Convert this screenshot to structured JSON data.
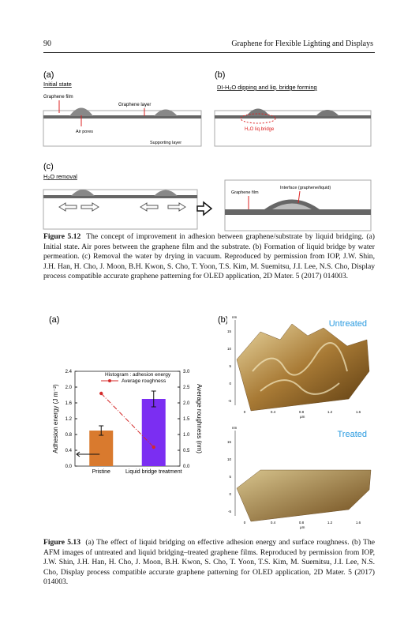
{
  "header": {
    "page_number": "90",
    "running_title": "Graphene for Flexible Lighting and Displays"
  },
  "figure_5_12": {
    "panel_a": {
      "label": "(a)",
      "title": "Initial state",
      "graphene_film": "Graphene film",
      "graphene_layer": "Graphene layer",
      "air_pores": "Air pores",
      "supporting_layer": "Supporting layer"
    },
    "panel_b": {
      "label": "(b)",
      "title": "DI-H₂O dipping and liq. bridge forming",
      "liquid_bridge": "H₂O liq.bridge"
    },
    "panel_c": {
      "label": "(c)",
      "title": "H₂O removal",
      "graphene_film": "Graphene film",
      "interface": "Interface (graphene/liquid)"
    },
    "caption": {
      "label": "Figure 5.12",
      "text": "The concept of improvement in adhesion between graphene/substrate by liquid bridging. (a) Initial state. Air pores between the graphene film and the substrate. (b) Formation of liquid bridge by water permeation. (c) Removal the water by drying in vacuum. Reproduced by permission from IOP, J.W. Shin, J.H. Han, H. Cho, J. Moon, B.H. Kwon, S. Cho, T. Yoon, T.S. Kim, M. Suemitsu, J.I. Lee, N.S. Cho, Display process compatible accurate graphene patterning for OLED application, 2D Mater. 5 (2017) 014003."
    }
  },
  "figure_5_13": {
    "panel_a_label": "(a)",
    "panel_b_label": "(b)",
    "chart": {
      "type": "bar",
      "categories": [
        "Pristine",
        "Liquid bridge treatment"
      ],
      "ylabel": "Adhesion energy (J m⁻²)",
      "y2label": "Average roughness (nm)",
      "ylim": [
        0,
        2.4
      ],
      "yticks": [
        {
          "value": 0,
          "label": "0.0"
        },
        {
          "value": 0.4,
          "label": "0.4"
        },
        {
          "value": 0.8,
          "label": "0.8"
        },
        {
          "value": 1.2,
          "label": "1.2"
        },
        {
          "value": 1.6,
          "label": "1.6"
        },
        {
          "value": 2,
          "label": "2.0"
        },
        {
          "value": 2.4,
          "label": "2.4"
        }
      ],
      "y2lim": [
        0,
        3
      ],
      "y2ticks": [
        {
          "value": 0,
          "label": "0.0"
        },
        {
          "value": 0.5,
          "label": "0.5"
        },
        {
          "value": 1,
          "label": "1.0"
        },
        {
          "value": 1.5,
          "label": "1.5"
        },
        {
          "value": 2,
          "label": "2.0"
        },
        {
          "value": 2.5,
          "label": "2.5"
        },
        {
          "value": 3,
          "label": "3.0"
        }
      ],
      "series": [
        {
          "name": "Histogram : adhesion energy",
          "colors": [
            "#d97a2e",
            "#7b2ef2"
          ],
          "values": [
            0.9,
            1.7
          ],
          "errors": [
            0.12,
            0.2
          ]
        },
        {
          "name": "Average roughness",
          "color": "#d42a2a",
          "axis": "y2",
          "values": [
            2.3,
            0.6
          ]
        }
      ]
    },
    "afm": {
      "z_unit": "nm",
      "z_ticks": [
        "15",
        "10",
        "5",
        "0",
        "-5"
      ],
      "x_ticks": [
        "0",
        "0.4",
        "0.8",
        "1.2",
        "1.6"
      ],
      "x_unit": "μm",
      "panels": [
        {
          "label": "Untreated"
        },
        {
          "label": "Treated"
        }
      ]
    },
    "caption": {
      "label": "Figure 5.13",
      "text": "(a) The effect of liquid bridging on effective adhesion energy and surface roughness. (b) The AFM images of untreated and liquid bridging–treated graphene films. Reproduced by permission from IOP, J.W. Shin, J.H. Han, H. Cho, J. Moon, B.H. Kwon, S. Cho, T. Yoon, T.S. Kim, M. Suemitsu, J.I. Lee, N.S. Cho, Display process compatible accurate graphene patterning for OLED application, 2D Mater. 5 (2017) 014003."
    }
  }
}
